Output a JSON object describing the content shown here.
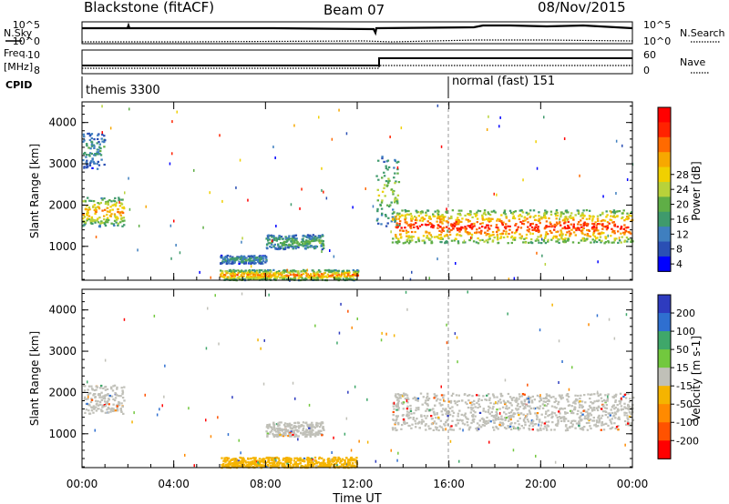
{
  "header": {
    "station": "Blackstone (fitACF)",
    "beam": "Beam 07",
    "date": "08/Nov/2015"
  },
  "summary_panels": {
    "nsky_label": "N.Sky",
    "nsearch_label": "N.Search",
    "freq_label_1": "Freq.",
    "freq_label_2": "[MHz]",
    "nave_label": "Nave",
    "cpid_label": "CPID",
    "noise_ticks": [
      "10^5",
      "10^0"
    ],
    "freq_ticks": [
      "10",
      "8"
    ],
    "nave_ticks": [
      "60",
      "0"
    ]
  },
  "cpid_segments": [
    {
      "name": "themis 3300",
      "start_hour": 0
    },
    {
      "name": "normal (fast) 151",
      "start_hour": 16
    }
  ],
  "chart_data": [
    {
      "type": "heatmap",
      "title": "",
      "xlabel": "",
      "ylabel": "Slant Range [km]",
      "x_range_hours": [
        0,
        24
      ],
      "ylim": [
        180,
        4500
      ],
      "x_tick_labels": [
        "00:00",
        "04:00",
        "08:00",
        "12:00",
        "16:00",
        "20:00",
        "00:00"
      ],
      "y_tick_labels": [
        "1000",
        "2000",
        "3000",
        "4000"
      ],
      "colorbar": {
        "label": "Power [dB]",
        "ticks": [
          "4",
          "8",
          "12",
          "16",
          "20",
          "24",
          "28"
        ],
        "colors": [
          "#0000ff",
          "#2a4fb4",
          "#3f7fbf",
          "#3f9a6c",
          "#5fae46",
          "#b8d23a",
          "#f0d000",
          "#f7a800",
          "#ff6a00",
          "#ff2200",
          "#ff0000"
        ]
      },
      "echo_regions": [
        {
          "name": "early-range-band",
          "t0": 0.0,
          "t1": 1.8,
          "r0": 1500,
          "r1": 2200,
          "level": 0.75
        },
        {
          "name": "early-far-band",
          "t0": 0.0,
          "t1": 1.0,
          "r0": 2900,
          "r1": 3800,
          "level": 0.3
        },
        {
          "name": "mid-patch",
          "t0": 8.0,
          "t1": 10.5,
          "r0": 950,
          "r1": 1300,
          "level": 0.4
        },
        {
          "name": "mid-low-patch",
          "t0": 6.0,
          "t1": 8.0,
          "r0": 600,
          "r1": 800,
          "level": 0.3
        },
        {
          "name": "ground-scatter-strip",
          "t0": 6.0,
          "t1": 12.0,
          "r0": 200,
          "r1": 450,
          "level": 0.8
        },
        {
          "name": "evening-spike",
          "t0": 12.8,
          "t1": 13.8,
          "r0": 1500,
          "r1": 3200,
          "level": 0.5
        },
        {
          "name": "main-arc",
          "t0": 13.5,
          "t1": 24.0,
          "r0": 1100,
          "r1": 1900,
          "level": 0.95
        }
      ]
    },
    {
      "type": "heatmap",
      "title": "",
      "xlabel": "Time UT",
      "ylabel": "Slant Range [km]",
      "x_range_hours": [
        0,
        24
      ],
      "ylim": [
        180,
        4500
      ],
      "x_tick_labels": [
        "00:00",
        "04:00",
        "08:00",
        "12:00",
        "16:00",
        "20:00",
        "00:00"
      ],
      "y_tick_labels": [
        "1000",
        "2000",
        "3000",
        "4000"
      ],
      "colorbar": {
        "label": "Velocity [m s-1]",
        "ticks": [
          "200",
          "100",
          "50",
          "15",
          "-15",
          "-50",
          "-100",
          "-200"
        ],
        "colors": [
          "#2e3bbf",
          "#2f6fd0",
          "#3fa76a",
          "#72c83e",
          "#c0c0b8",
          "#f5b400",
          "#ff8a00",
          "#ff5200",
          "#ff0000"
        ]
      },
      "echo_regions": [
        {
          "name": "early-range-band",
          "t0": 0.0,
          "t1": 1.8,
          "r0": 1500,
          "r1": 2200,
          "level": "low-velocity"
        },
        {
          "name": "mid-patch",
          "t0": 8.0,
          "t1": 10.5,
          "r0": 950,
          "r1": 1300,
          "level": "low-velocity"
        },
        {
          "name": "ground-scatter-strip",
          "t0": 6.0,
          "t1": 12.0,
          "r0": 200,
          "r1": 450,
          "level": "-50"
        },
        {
          "name": "main-arc",
          "t0": 13.5,
          "t1": 24.0,
          "r0": 1100,
          "r1": 2000,
          "level": "low-velocity"
        }
      ]
    }
  ]
}
